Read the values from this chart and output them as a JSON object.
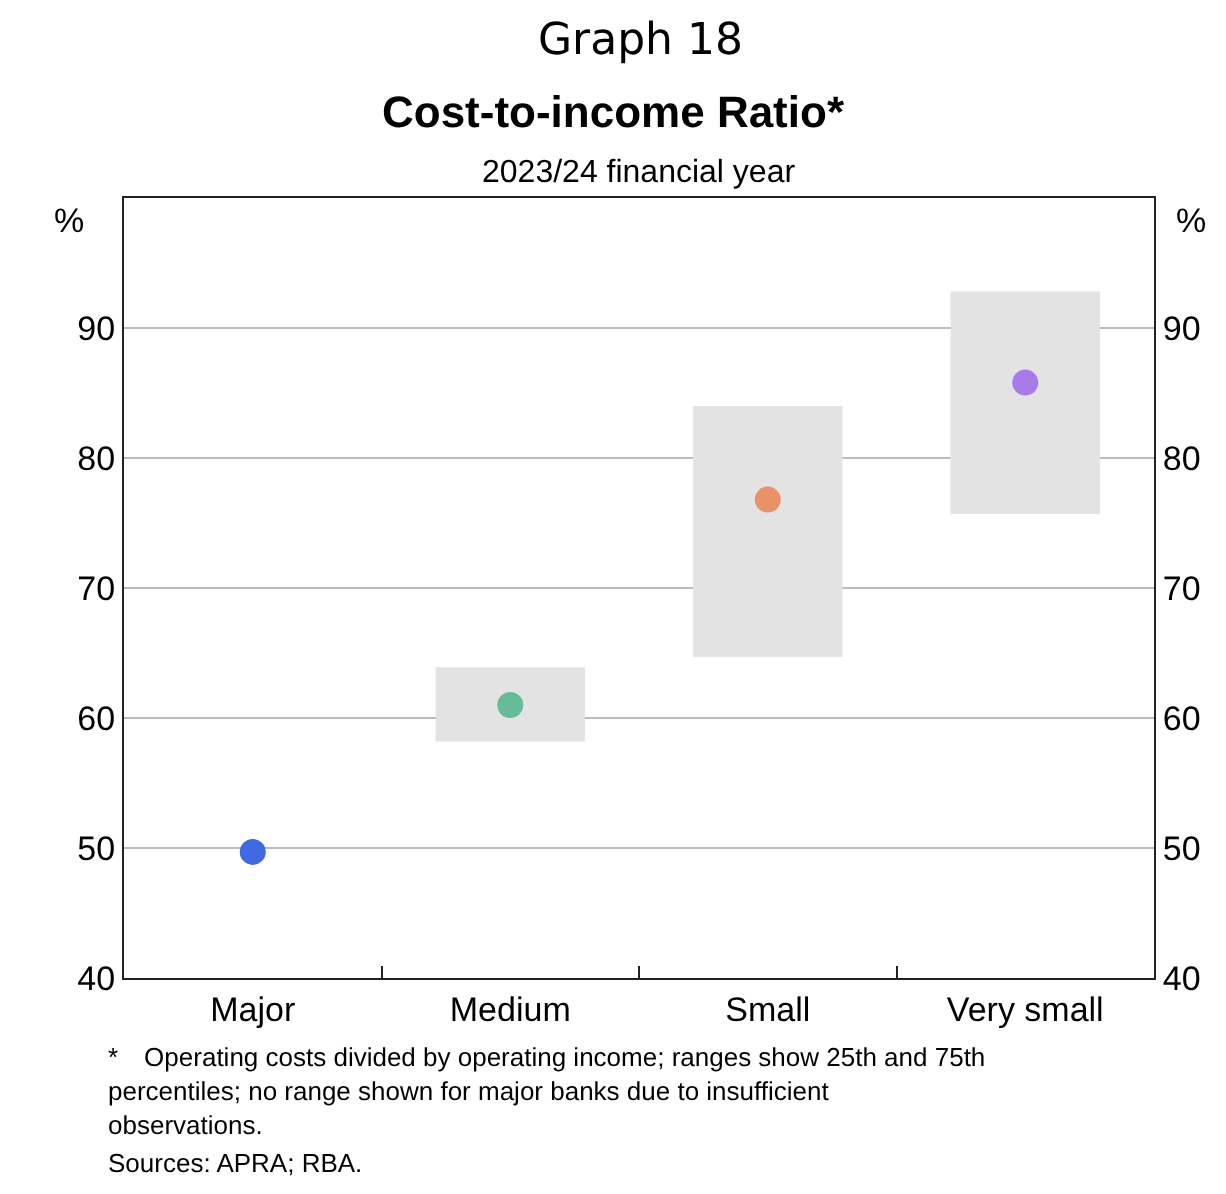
{
  "chart_data": {
    "type": "bar",
    "title": "Cost-to-income Ratio*",
    "subtitle": "2023/24 financial year",
    "ylabel": "%",
    "y2label": "%",
    "categories": [
      "Major",
      "Medium",
      "Small",
      "Very small"
    ],
    "series": [
      {
        "color": "#e3e3e3",
        "base": [
          null,
          58.2,
          64.7,
          75.7
        ],
        "values": [
          null,
          5.7,
          19.3,
          17.1
        ]
      },
      {
        "type": "scatter",
        "x": [
          "Major",
          "Medium",
          "Small",
          "Very small"
        ],
        "colors": [
          "#4169e1",
          "#66bb99",
          "#e8926a",
          "#a97be8"
        ],
        "values": [
          49.7,
          61.0,
          76.8,
          85.8
        ]
      }
    ],
    "ylim": [
      40,
      100
    ],
    "yticks": [
      40,
      50,
      60,
      70,
      80,
      90
    ],
    "y2lim": [
      40,
      100
    ],
    "y2ticks": [
      40,
      50,
      60,
      70,
      80,
      90
    ],
    "grid": "y",
    "marker": "circle",
    "annotations": [
      "Graph 18",
      "* Operating costs divided by operating income; ranges show 25th and 75th percentiles; no range shown for major banks due to insufficient observations.",
      "Sources: APRA; RBA."
    ]
  }
}
